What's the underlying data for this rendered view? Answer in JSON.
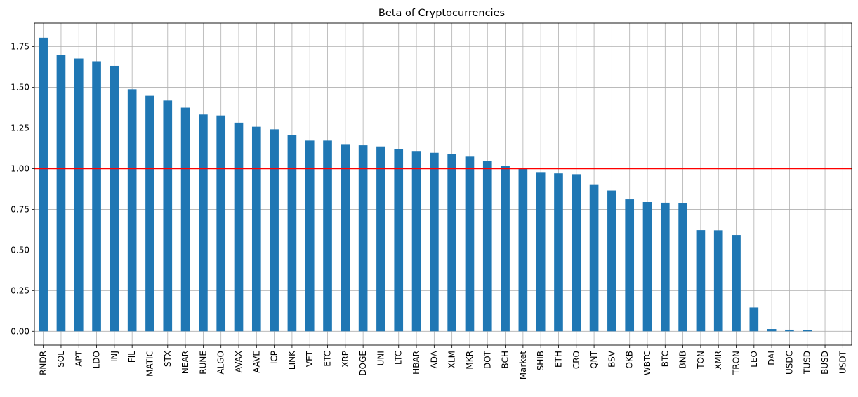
{
  "chart_data": {
    "type": "bar",
    "title": "Beta of Cryptocurrencies",
    "xlabel": "",
    "ylabel": "",
    "ylim": [
      -0.085,
      1.895
    ],
    "yticks": [
      "0.00",
      "0.25",
      "0.50",
      "0.75",
      "1.00",
      "1.25",
      "1.50",
      "1.75"
    ],
    "grid": true,
    "reference_line": {
      "value": 1.0,
      "color": "#ff0000"
    },
    "bar_color": "#1f77b4",
    "categories": [
      "RNDR",
      "SOL",
      "APT",
      "LDO",
      "INJ",
      "FIL",
      "MATIC",
      "STX",
      "NEAR",
      "RUNE",
      "ALGO",
      "AVAX",
      "AAVE",
      "ICP",
      "LINK",
      "VET",
      "ETC",
      "XRP",
      "DOGE",
      "UNI",
      "LTC",
      "HBAR",
      "ADA",
      "XLM",
      "MKR",
      "DOT",
      "BCH",
      "Market",
      "SHIB",
      "ETH",
      "CRO",
      "QNT",
      "BSV",
      "OKB",
      "WBTC",
      "BTC",
      "BNB",
      "TON",
      "XMR",
      "TRON",
      "LEO",
      "DAI",
      "USDC",
      "TUSD",
      "BUSD",
      "USDT"
    ],
    "values": [
      1.805,
      1.698,
      1.677,
      1.66,
      1.632,
      1.488,
      1.448,
      1.419,
      1.375,
      1.333,
      1.327,
      1.283,
      1.258,
      1.242,
      1.209,
      1.173,
      1.173,
      1.147,
      1.144,
      1.137,
      1.12,
      1.109,
      1.098,
      1.09,
      1.074,
      1.048,
      1.019,
      1.0,
      0.979,
      0.971,
      0.966,
      0.9,
      0.866,
      0.812,
      0.795,
      0.791,
      0.79,
      0.622,
      0.621,
      0.592,
      0.146,
      0.014,
      0.01,
      0.008,
      0.0,
      0.0
    ]
  }
}
